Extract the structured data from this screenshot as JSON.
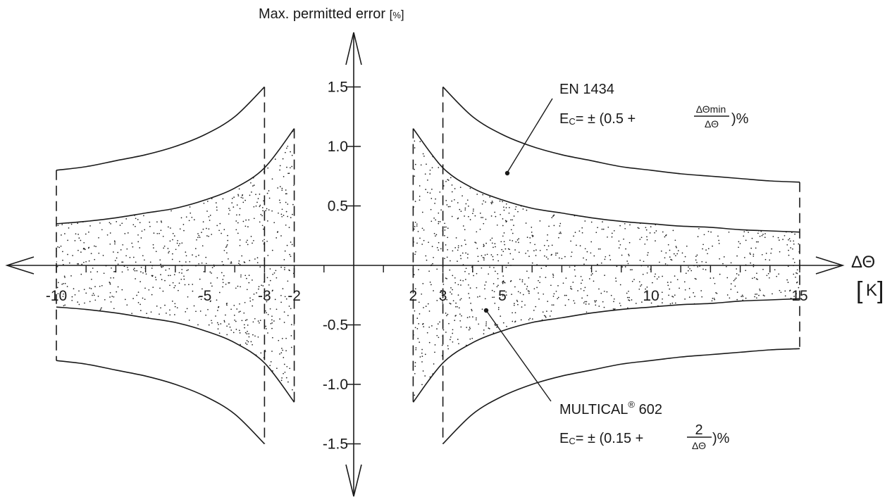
{
  "chart_data": {
    "type": "line",
    "ylabel": "Max. permitted error",
    "yunit": "%",
    "xlabel": "ΔΘ",
    "xunit": "K",
    "xlim": [
      -10,
      15
    ],
    "ylim": [
      -1.5,
      1.5
    ],
    "xtick_labels": [
      {
        "x": -10,
        "label": "-10"
      },
      {
        "x": -5,
        "label": "-5"
      },
      {
        "x": -3,
        "label": "-3"
      },
      {
        "x": -2,
        "label": "-2"
      },
      {
        "x": 2,
        "label": "2"
      },
      {
        "x": 3,
        "label": "3"
      },
      {
        "x": 5,
        "label": "5"
      },
      {
        "x": 10,
        "label": "10"
      },
      {
        "x": 15,
        "label": "15"
      }
    ],
    "ytick_labels": [
      {
        "y": 1.5,
        "label": "1.5"
      },
      {
        "y": 1.0,
        "label": "1.0"
      },
      {
        "y": 0.5,
        "label": "0.5"
      },
      {
        "y": -0.5,
        "label": "-0.5"
      },
      {
        "y": -1.0,
        "label": "-1.0"
      },
      {
        "y": -1.5,
        "label": "-1.5"
      }
    ],
    "series": [
      {
        "name": "EN 1434",
        "formula": "E_c = ±(0.5 + ΔΘmin/ΔΘ)%",
        "x_ranges": [
          [
            -10,
            -3
          ],
          [
            3,
            15
          ]
        ],
        "x": [
          -10,
          -9,
          -8,
          -7,
          -6,
          -5,
          -4,
          -3,
          3,
          4,
          5,
          6,
          7,
          8,
          9,
          10,
          11,
          12,
          13,
          14,
          15
        ],
        "upper": [
          0.8,
          0.83,
          0.88,
          0.93,
          1.0,
          1.1,
          1.25,
          1.5,
          1.5,
          1.25,
          1.1,
          1.0,
          0.93,
          0.88,
          0.83,
          0.8,
          0.77,
          0.75,
          0.73,
          0.71,
          0.7
        ],
        "lower": [
          -0.8,
          -0.83,
          -0.88,
          -0.93,
          -1.0,
          -1.1,
          -1.25,
          -1.5,
          -1.5,
          -1.25,
          -1.1,
          -1.0,
          -0.93,
          -0.88,
          -0.83,
          -0.8,
          -0.77,
          -0.75,
          -0.73,
          -0.71,
          -0.7
        ]
      },
      {
        "name": "MULTICAL® 602",
        "formula": "E_c = ±(0.15 + 2/ΔΘ)%",
        "x_ranges": [
          [
            -10,
            -2
          ],
          [
            2,
            15
          ]
        ],
        "x": [
          -10,
          -9,
          -8,
          -7,
          -6,
          -5,
          -4,
          -3,
          -2,
          2,
          3,
          4,
          5,
          6,
          7,
          8,
          9,
          10,
          11,
          12,
          13,
          14,
          15
        ],
        "upper": [
          0.35,
          0.37,
          0.4,
          0.44,
          0.48,
          0.55,
          0.65,
          0.82,
          1.15,
          1.15,
          0.82,
          0.65,
          0.55,
          0.48,
          0.44,
          0.4,
          0.37,
          0.35,
          0.33,
          0.32,
          0.3,
          0.29,
          0.28
        ],
        "lower": [
          -0.35,
          -0.37,
          -0.4,
          -0.44,
          -0.48,
          -0.55,
          -0.65,
          -0.82,
          -1.15,
          -1.15,
          -0.82,
          -0.65,
          -0.55,
          -0.48,
          -0.44,
          -0.4,
          -0.37,
          -0.35,
          -0.33,
          -0.32,
          -0.3,
          -0.29,
          -0.28
        ],
        "fill": "stippled"
      }
    ],
    "annotations": {
      "en1434": {
        "title": "EN 1434",
        "ec": "E",
        "ec_sub": "C",
        "eq_prefix": "=  ± (0.5 + ",
        "frac_num": "ΔΘmin",
        "frac_den": "ΔΘ",
        "eq_suffix": ")%",
        "point": [
          5.3,
          0.78
        ]
      },
      "multical": {
        "title": "MULTICAL",
        "reg": "®",
        "title_suffix": " 602",
        "ec": "E",
        "ec_sub": "C",
        "eq_prefix": "=  ± (0.15 + ",
        "frac_num": "2",
        "frac_den": "ΔΘ",
        "eq_suffix": ")%",
        "point": [
          4.3,
          -0.38
        ]
      }
    },
    "colors": {
      "ink": "#1a1a1a",
      "background": "#ffffff"
    }
  }
}
